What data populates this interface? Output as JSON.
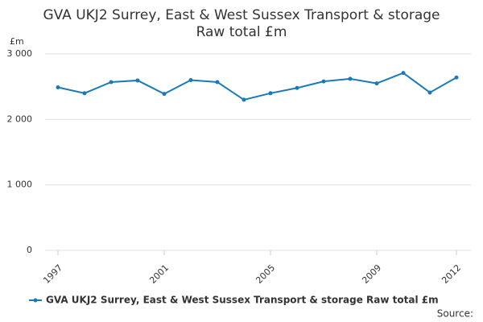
{
  "chart_data": {
    "type": "line",
    "title": [
      "GVA UKJ2 Surrey, East & West Sussex Transport & storage",
      "Raw total £m"
    ],
    "y_label": "£m",
    "x": [
      1997,
      1998,
      1999,
      2000,
      2001,
      2002,
      2003,
      2004,
      2005,
      2006,
      2007,
      2008,
      2009,
      2010,
      2011,
      2012
    ],
    "series": [
      {
        "name": "GVA UKJ2 Surrey, East & West Sussex Transport & storage Raw total £m",
        "color": "#1a7ab8",
        "values": [
          2490,
          2400,
          2570,
          2595,
          2390,
          2600,
          2570,
          2300,
          2400,
          2480,
          2580,
          2620,
          2550,
          2710,
          2410,
          2640
        ]
      }
    ],
    "xlim": [
      1997,
      2012
    ],
    "xticks": [
      1997,
      2001,
      2005,
      2009,
      2012
    ],
    "ylim": [
      0,
      3000
    ],
    "yticks": [
      0,
      {
        "value": 1000,
        "label": "1 000"
      },
      {
        "value": 2000,
        "label": "2 000"
      },
      {
        "value": 3000,
        "label": "3 000"
      }
    ],
    "grid": true,
    "source": "Source:"
  }
}
